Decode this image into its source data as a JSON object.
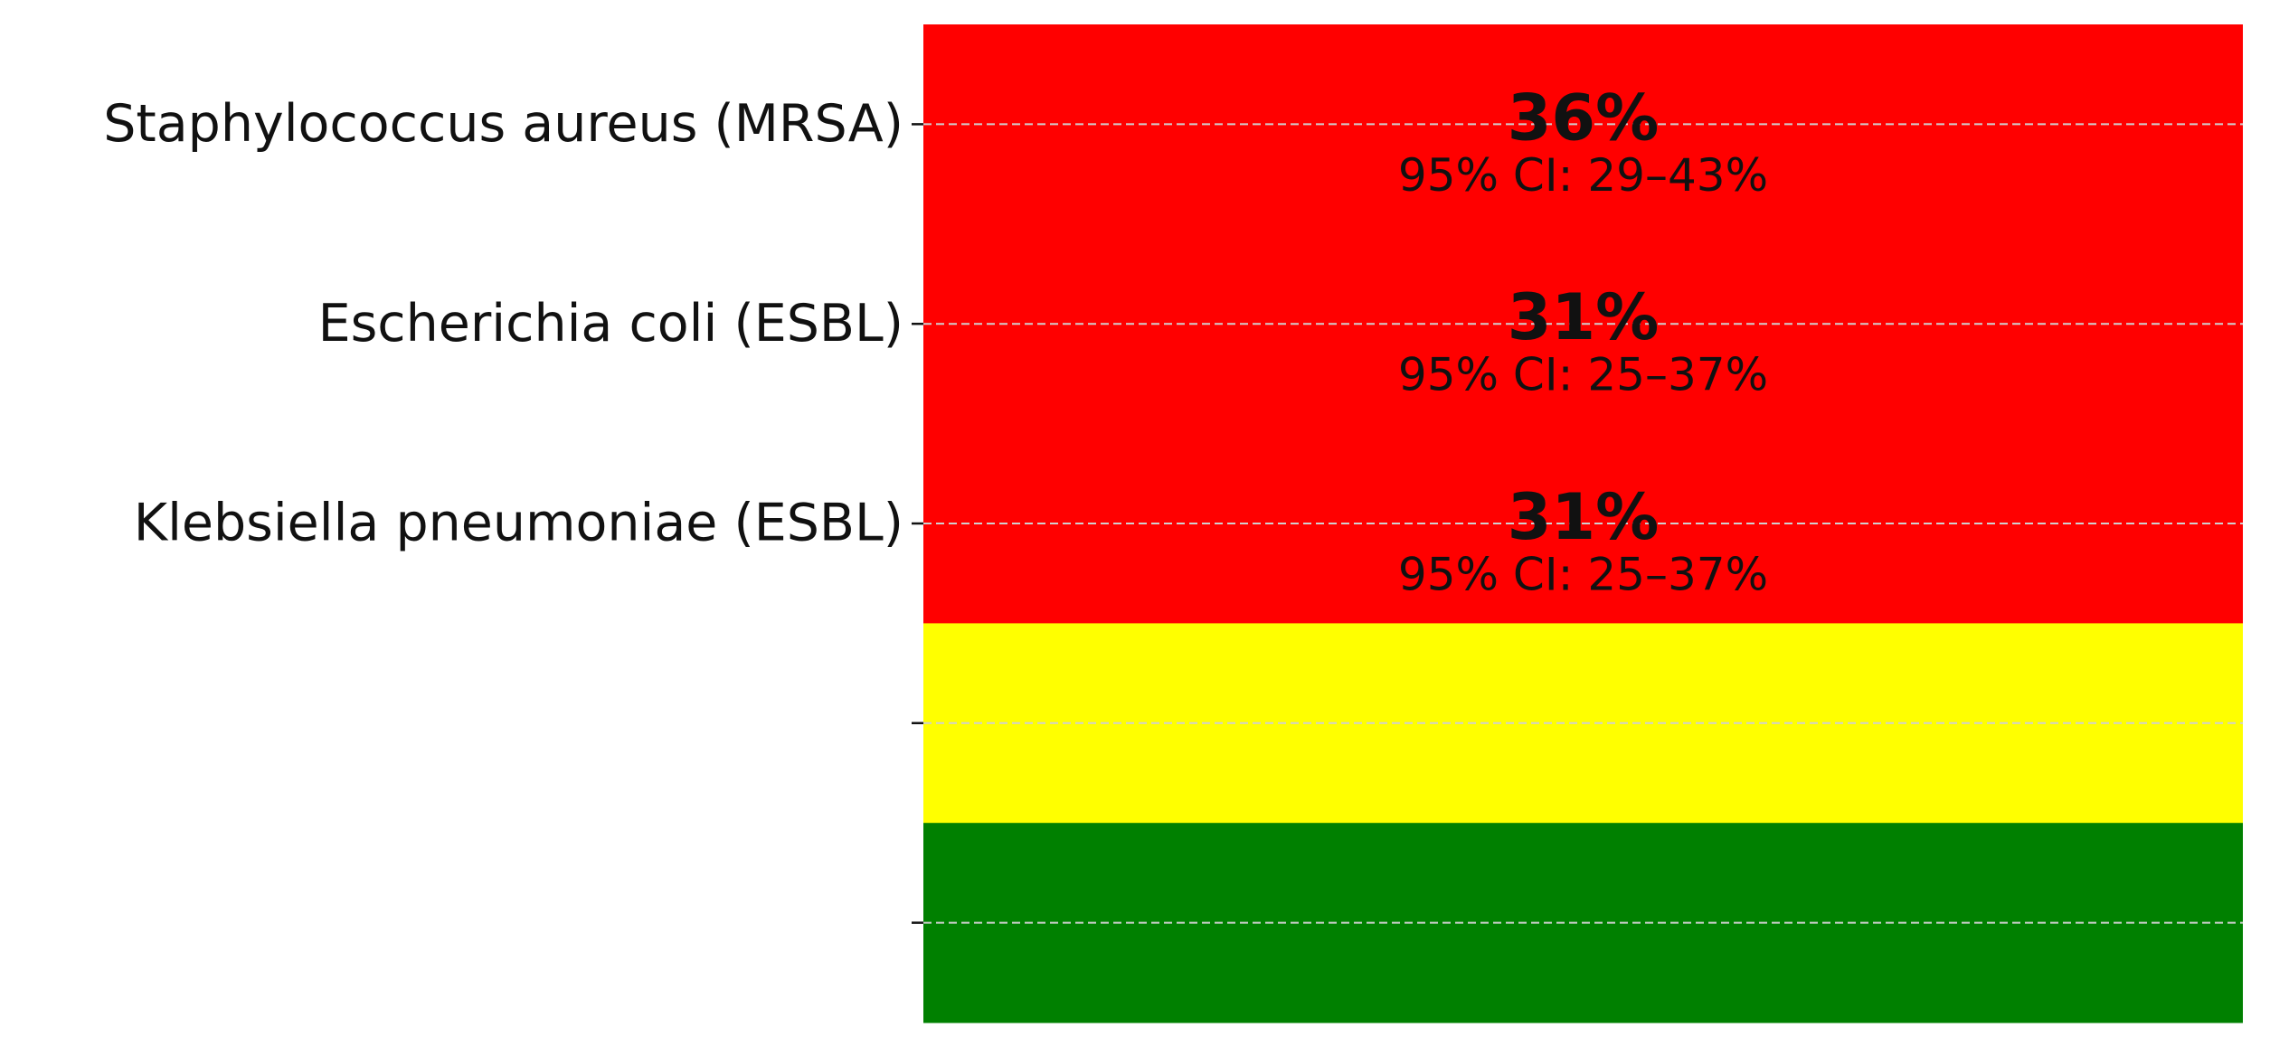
{
  "chart_data": {
    "type": "bar",
    "categories": [
      "Staphylococcus aureus (MRSA)",
      "Escherichia coli (ESBL)",
      "Klebsiella pneumoniae (ESBL)",
      null,
      null
    ],
    "values": [
      36,
      31,
      31,
      null,
      null
    ],
    "value_labels": [
      "36%",
      "31%",
      "31%",
      null,
      null
    ],
    "ci_low": [
      29,
      25,
      25,
      null,
      null
    ],
    "ci_high": [
      43,
      37,
      37,
      null,
      null
    ],
    "ci_labels": [
      "95% CI: 29–43%",
      "95% CI: 25–37%",
      "95% CI: 25–37%",
      null,
      null
    ],
    "colors": [
      "#ff0000",
      "#ff0000",
      "#ff0000",
      "#ffff00",
      "#008000"
    ],
    "grid": true
  }
}
